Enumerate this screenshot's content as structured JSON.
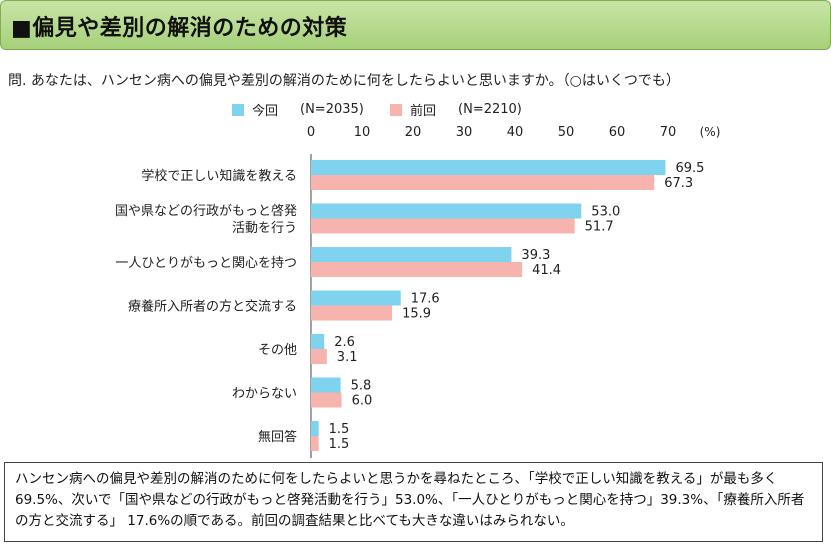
{
  "header": {
    "title": "■偏見や差別の解消のための対策"
  },
  "question": "問. あなたは、ハンセン病への偏見や差別の解消のために何をしたらよいと思いますか。（○はいくつでも）",
  "legend": [
    {
      "name": "今回",
      "n": "(N=2035)",
      "color": "#7fd3ee"
    },
    {
      "name": "前回",
      "n": "(N=2210)",
      "color": "#f7b4ae"
    }
  ],
  "chart_data": {
    "type": "bar",
    "orientation": "horizontal",
    "unit": "(%)",
    "xlim": [
      0,
      70
    ],
    "ticks": [
      0,
      10,
      20,
      30,
      40,
      50,
      60,
      70
    ],
    "categories": [
      [
        "学校で正しい知識を教える"
      ],
      [
        "国や県などの行政がもっと啓発",
        "活動を行う"
      ],
      [
        "一人ひとりがもっと関心を持つ"
      ],
      [
        "療養所入所者の方と交流する"
      ],
      [
        "その他"
      ],
      [
        "わからない"
      ],
      [
        "無回答"
      ]
    ],
    "series": [
      {
        "name": "今回",
        "values": [
          69.5,
          53.0,
          39.3,
          17.6,
          2.6,
          5.8,
          1.5
        ],
        "labels": [
          "69.5",
          "53.0",
          "39.3",
          "17.6",
          "2.6",
          "5.8",
          "1.5"
        ]
      },
      {
        "name": "前回",
        "values": [
          67.3,
          51.7,
          41.4,
          15.9,
          3.1,
          6.0,
          1.5
        ],
        "labels": [
          "67.3",
          "51.7",
          "41.4",
          "15.9",
          "3.1",
          "6.0",
          "1.5"
        ]
      }
    ]
  },
  "summary": "ハンセン病への偏見や差別の解消のために何をしたらよいと思うかを尋ねたところ、「学校で正しい知識を教える」が最も多く 69.5%、次いで「国や県などの行政がもっと啓発活動を行う」53.0%、「一人ひとりがもっと関心を持つ」39.3%、「療養所入所者の方と交流する」 17.6%の順である。前回の調査結果と比べても大きな違いはみられない。"
}
